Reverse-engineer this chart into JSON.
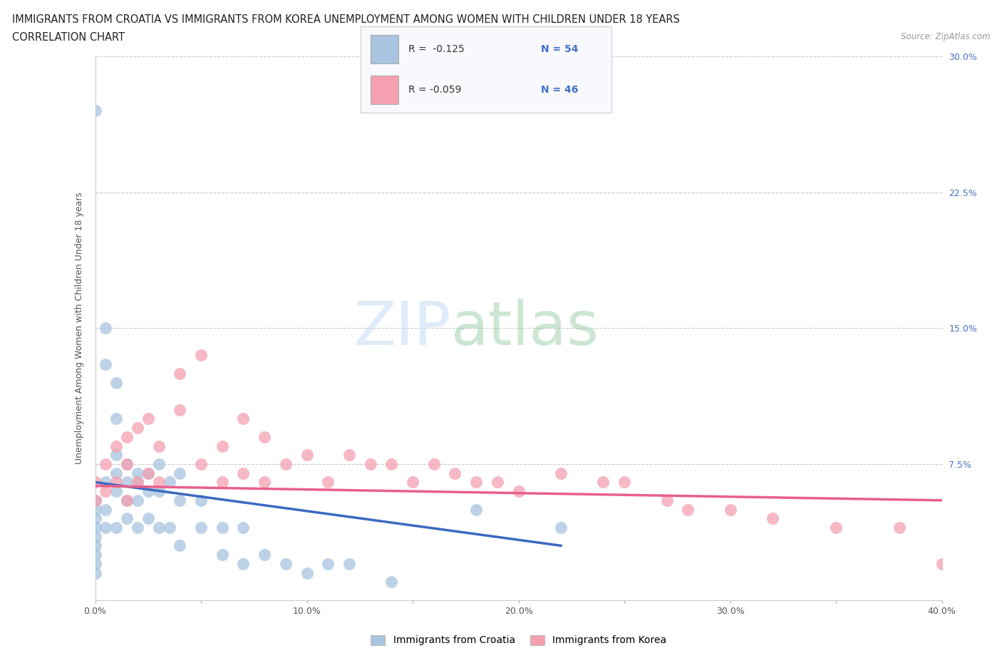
{
  "title_line1": "IMMIGRANTS FROM CROATIA VS IMMIGRANTS FROM KOREA UNEMPLOYMENT AMONG WOMEN WITH CHILDREN UNDER 18 YEARS",
  "title_line2": "CORRELATION CHART",
  "source_text": "Source: ZipAtlas.com",
  "ylabel": "Unemployment Among Women with Children Under 18 years",
  "xlim": [
    0.0,
    0.4
  ],
  "ylim": [
    0.0,
    0.3
  ],
  "color_croatia": "#a8c4e0",
  "color_korea": "#f4a0b0",
  "trendline_croatia_color": "#3a6abf",
  "trendline_korea_color": "#e8608a",
  "watermark_zip": "ZIP",
  "watermark_atlas": "atlas",
  "croatia_x": [
    0.0,
    0.0,
    0.0,
    0.0,
    0.0,
    0.0,
    0.0,
    0.0,
    0.0,
    0.0,
    0.005,
    0.005,
    0.005,
    0.005,
    0.005,
    0.01,
    0.01,
    0.01,
    0.01,
    0.01,
    0.01,
    0.015,
    0.015,
    0.015,
    0.015,
    0.02,
    0.02,
    0.02,
    0.02,
    0.025,
    0.025,
    0.025,
    0.03,
    0.03,
    0.03,
    0.035,
    0.035,
    0.04,
    0.04,
    0.04,
    0.05,
    0.05,
    0.06,
    0.06,
    0.07,
    0.07,
    0.08,
    0.09,
    0.1,
    0.11,
    0.12,
    0.14,
    0.18,
    0.22
  ],
  "croatia_y": [
    0.27,
    0.055,
    0.05,
    0.045,
    0.04,
    0.035,
    0.03,
    0.025,
    0.02,
    0.015,
    0.15,
    0.13,
    0.065,
    0.05,
    0.04,
    0.12,
    0.1,
    0.08,
    0.07,
    0.06,
    0.04,
    0.075,
    0.065,
    0.055,
    0.045,
    0.07,
    0.065,
    0.055,
    0.04,
    0.07,
    0.06,
    0.045,
    0.075,
    0.06,
    0.04,
    0.065,
    0.04,
    0.07,
    0.055,
    0.03,
    0.055,
    0.04,
    0.04,
    0.025,
    0.04,
    0.02,
    0.025,
    0.02,
    0.015,
    0.02,
    0.02,
    0.01,
    0.05,
    0.04
  ],
  "korea_x": [
    0.0,
    0.0,
    0.005,
    0.005,
    0.01,
    0.01,
    0.015,
    0.015,
    0.015,
    0.02,
    0.02,
    0.025,
    0.025,
    0.03,
    0.03,
    0.04,
    0.04,
    0.05,
    0.05,
    0.06,
    0.06,
    0.07,
    0.07,
    0.08,
    0.08,
    0.09,
    0.1,
    0.11,
    0.12,
    0.13,
    0.14,
    0.15,
    0.16,
    0.17,
    0.18,
    0.19,
    0.2,
    0.22,
    0.24,
    0.25,
    0.27,
    0.28,
    0.3,
    0.32,
    0.35,
    0.38,
    0.4
  ],
  "korea_y": [
    0.065,
    0.055,
    0.075,
    0.06,
    0.085,
    0.065,
    0.09,
    0.075,
    0.055,
    0.095,
    0.065,
    0.1,
    0.07,
    0.085,
    0.065,
    0.125,
    0.105,
    0.135,
    0.075,
    0.085,
    0.065,
    0.1,
    0.07,
    0.09,
    0.065,
    0.075,
    0.08,
    0.065,
    0.08,
    0.075,
    0.075,
    0.065,
    0.075,
    0.07,
    0.065,
    0.065,
    0.06,
    0.07,
    0.065,
    0.065,
    0.055,
    0.05,
    0.05,
    0.045,
    0.04,
    0.04,
    0.02
  ],
  "trendline_croatia_x0": 0.0,
  "trendline_croatia_x1": 0.22,
  "trendline_croatia_y0": 0.065,
  "trendline_croatia_y1": 0.03,
  "trendline_korea_x0": 0.0,
  "trendline_korea_x1": 0.4,
  "trendline_korea_y0": 0.063,
  "trendline_korea_y1": 0.055
}
